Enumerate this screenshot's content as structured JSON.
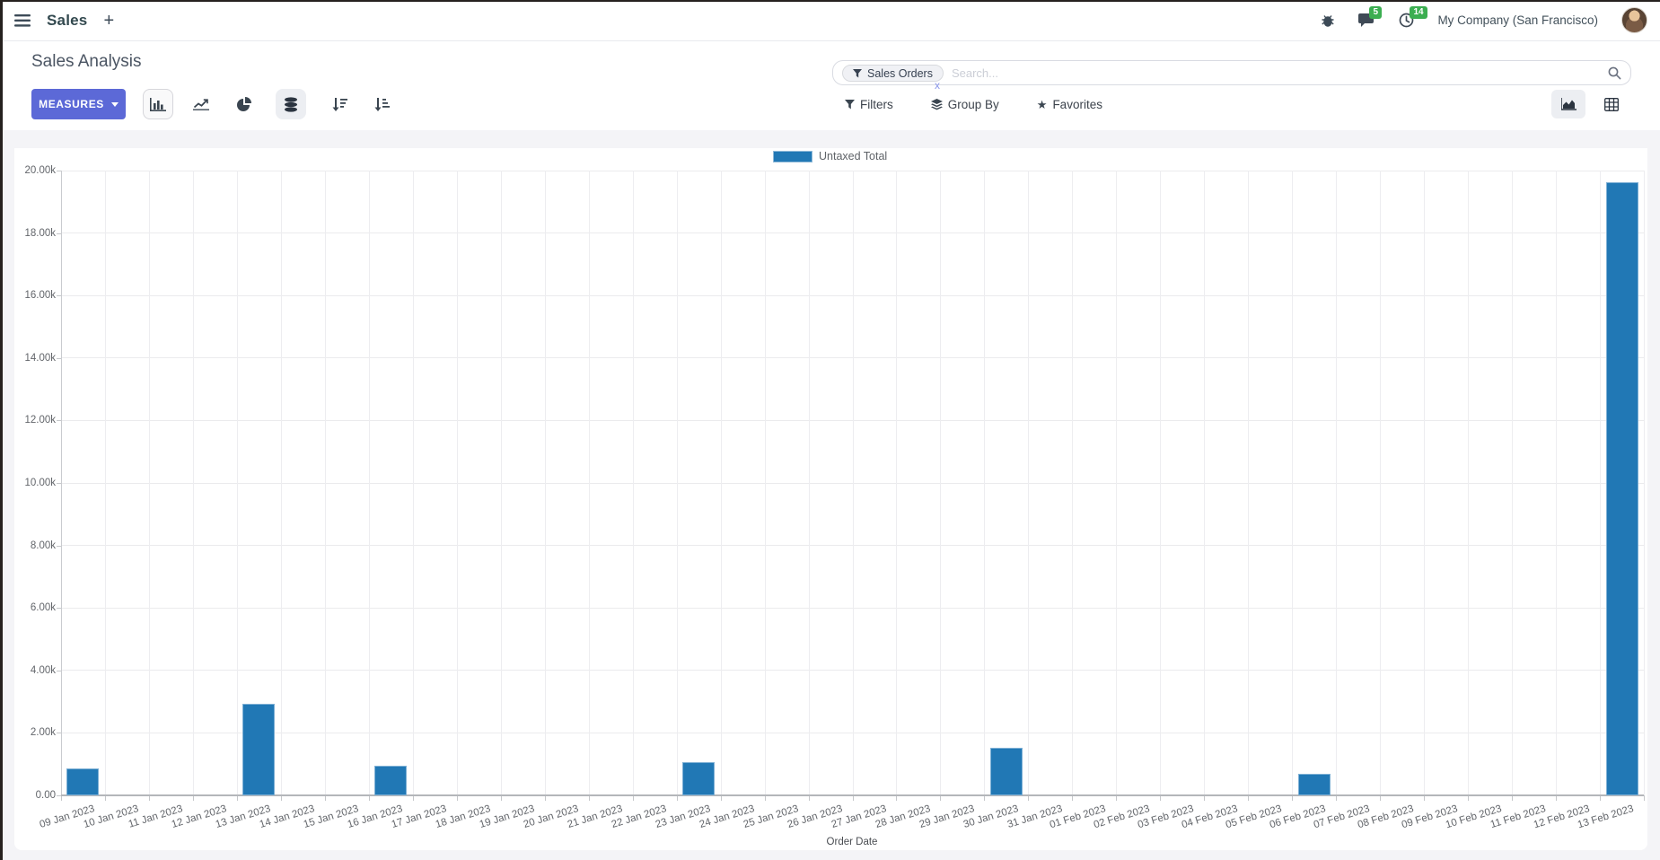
{
  "topbar": {
    "app_menu_title": "Sales",
    "plus_glyph": "+",
    "messages_badge": "5",
    "activities_badge": "14",
    "company": "My Company (San Francisco)"
  },
  "control_panel": {
    "title": "Sales Analysis",
    "measures_label": "MEASURES",
    "search": {
      "facet": "Sales Orders",
      "facet_remove_glyph": "x",
      "placeholder": "Search..."
    },
    "filters_label": "Filters",
    "group_by_label": "Group By",
    "favorites_label": "Favorites",
    "star_glyph": "★"
  },
  "chart_data": {
    "type": "bar",
    "title": "",
    "xlabel": "Order Date",
    "ylabel": "",
    "ylim": [
      0,
      20000
    ],
    "ytick_step": 2000,
    "ytick_labels": [
      "0.00",
      "2.00k",
      "4.00k",
      "6.00k",
      "8.00k",
      "10.00k",
      "12.00k",
      "14.00k",
      "16.00k",
      "18.00k",
      "20.00k"
    ],
    "grid": true,
    "legend_position": "top",
    "categories": [
      "09 Jan 2023",
      "10 Jan 2023",
      "11 Jan 2023",
      "12 Jan 2023",
      "13 Jan 2023",
      "14 Jan 2023",
      "15 Jan 2023",
      "16 Jan 2023",
      "17 Jan 2023",
      "18 Jan 2023",
      "19 Jan 2023",
      "20 Jan 2023",
      "21 Jan 2023",
      "22 Jan 2023",
      "23 Jan 2023",
      "24 Jan 2023",
      "25 Jan 2023",
      "26 Jan 2023",
      "27 Jan 2023",
      "28 Jan 2023",
      "29 Jan 2023",
      "30 Jan 2023",
      "31 Jan 2023",
      "01 Feb 2023",
      "02 Feb 2023",
      "03 Feb 2023",
      "04 Feb 2023",
      "05 Feb 2023",
      "06 Feb 2023",
      "07 Feb 2023",
      "08 Feb 2023",
      "09 Feb 2023",
      "10 Feb 2023",
      "11 Feb 2023",
      "12 Feb 2023",
      "13 Feb 2023"
    ],
    "series": [
      {
        "name": "Untaxed Total",
        "color": "#2178b5",
        "values": [
          850,
          0,
          0,
          0,
          2930,
          0,
          0,
          960,
          0,
          0,
          0,
          0,
          0,
          0,
          1060,
          0,
          0,
          0,
          0,
          0,
          0,
          1510,
          0,
          0,
          0,
          0,
          0,
          0,
          690,
          0,
          0,
          0,
          0,
          0,
          0,
          19630
        ]
      }
    ]
  }
}
